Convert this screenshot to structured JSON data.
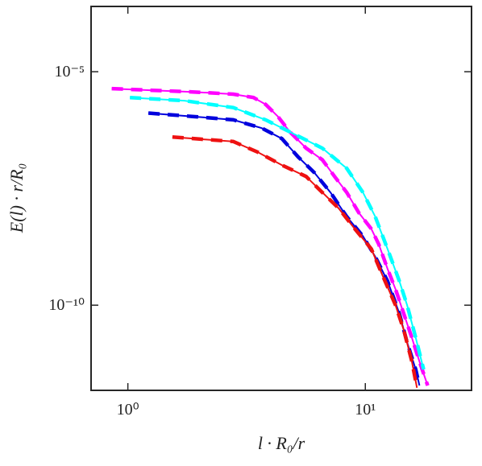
{
  "chart_data": {
    "type": "line",
    "log_x": true,
    "log_y": true,
    "x_label": "l · R₀/r",
    "y_label": "E(l) · r/R₀",
    "xlim": [
      0.7,
      28
    ],
    "ylim": [
      1.5e-12,
      0.00025
    ],
    "xticks": [
      {
        "value": 1,
        "label": "10⁰"
      },
      {
        "value": 10,
        "label": "10¹"
      }
    ],
    "yticks": [
      {
        "value": 1e-10,
        "label": "10⁻¹⁰"
      },
      {
        "value": 1e-05,
        "label": "10⁻⁵"
      }
    ],
    "series": [
      {
        "color": "#ff00ff",
        "x": [
          0.855,
          1.27,
          1.87,
          2.78,
          3.38,
          3.8,
          4.28,
          4.82,
          5.63,
          6.59,
          7.42,
          8.35,
          9.39,
          10.6,
          11.4,
          12.4,
          13.4,
          14.5,
          15.7,
          16.9,
          18.3
        ],
        "values": [
          4.35e-06,
          4e-06,
          3.7e-06,
          3.3e-06,
          2.8e-06,
          2e-06,
          1.1e-06,
          5.1e-07,
          2.3e-07,
          1.3e-07,
          5.7e-08,
          2.6e-08,
          9.5e-09,
          4.3e-09,
          2e-09,
          6e-10,
          2.2e-10,
          6.7e-11,
          2e-11,
          6.2e-12,
          1.9e-12
        ]
      },
      {
        "color": "#00ffff",
        "x": [
          1.02,
          1.73,
          2.78,
          3.8,
          5.21,
          6.59,
          8.35,
          9.77,
          11.0,
          12.4,
          13.9,
          15.0,
          16.3,
          17.6
        ],
        "values": [
          2.8e-06,
          2.4e-06,
          1.7e-06,
          9.3e-07,
          4.2e-07,
          2.3e-07,
          8.5e-08,
          2.6e-08,
          7.9e-09,
          1.6e-09,
          3.3e-10,
          1e-10,
          2e-11,
          4.2e-12
        ]
      },
      {
        "color": "#0000dd",
        "x": [
          1.22,
          1.87,
          2.78,
          3.66,
          4.45,
          5.21,
          6.1,
          7.13,
          8.35,
          9.77,
          11.0,
          12.4,
          13.9,
          15.0,
          16.3,
          16.9
        ],
        "values": [
          1.3e-06,
          1.1e-06,
          9.3e-07,
          6.2e-07,
          3.7e-07,
          1.5e-07,
          6.9e-08,
          2.6e-08,
          7.9e-09,
          3e-09,
          1.1e-09,
          3.3e-10,
          6.7e-11,
          1.6e-11,
          4.2e-12,
          1.9e-12
        ]
      },
      {
        "color": "#ee1111",
        "x": [
          1.54,
          2.03,
          2.78,
          3.52,
          4.45,
          5.63,
          6.59,
          7.71,
          9.03,
          10.6,
          11.9,
          13.4,
          14.5,
          15.7,
          16.5
        ],
        "values": [
          4e-07,
          3.6e-07,
          3.2e-07,
          1.9e-07,
          1e-07,
          5.7e-08,
          2.6e-08,
          1.2e-08,
          4.3e-09,
          1.6e-09,
          4e-10,
          1e-10,
          3e-11,
          6.2e-12,
          1.7e-12
        ]
      }
    ]
  }
}
